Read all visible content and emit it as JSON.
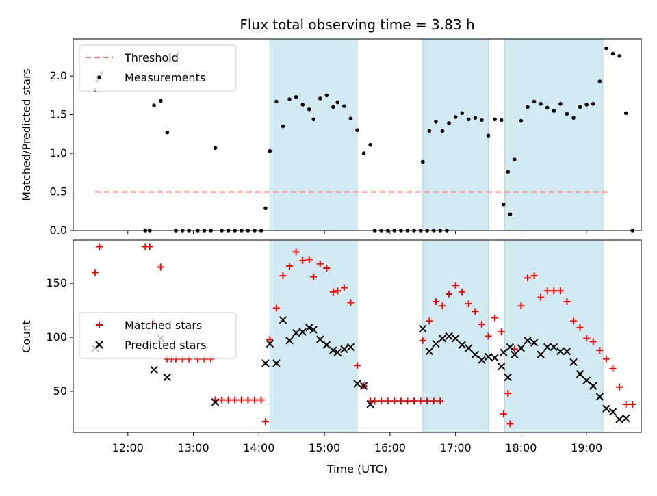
{
  "chart_data": [
    {
      "type": "scatter",
      "title": "Flux total observing time = 3.83 h",
      "ylabel": "Matched/Predicted stars",
      "xlabel": "",
      "xlim": [
        "11:10",
        "19:50"
      ],
      "ylim": [
        0,
        2.48
      ],
      "yticks": [
        0.0,
        0.5,
        1.0,
        1.5,
        2.0
      ],
      "ytick_labels": [
        "0.0",
        "0.5",
        "1.0",
        "1.5",
        "2.0"
      ],
      "grid": false,
      "legend_position": "upper-left",
      "shaded_color": "#add8e6",
      "shaded_intervals": [
        [
          "14:10",
          "15:30"
        ],
        [
          "16:30",
          "17:30"
        ],
        [
          "17:45",
          "19:15"
        ]
      ],
      "threshold": {
        "name": "Threshold",
        "y": 0.5,
        "x_start": "11:30",
        "x_end": "19:20",
        "color": "#ff7070"
      },
      "series": [
        {
          "name": "Measurements",
          "color": "#000000",
          "points": [
            [
              "11:30",
              1.82
            ],
            [
              "11:32",
              1.94
            ],
            [
              "11:36",
              2.04
            ],
            [
              "12:16",
              0.0
            ],
            [
              "12:20",
              0.0
            ],
            [
              "12:24",
              1.62
            ],
            [
              "12:30",
              1.68
            ],
            [
              "12:36",
              1.27
            ],
            [
              "12:44",
              0.0
            ],
            [
              "12:50",
              0.0
            ],
            [
              "12:56",
              0.0
            ],
            [
              "13:04",
              0.0
            ],
            [
              "13:10",
              0.0
            ],
            [
              "13:16",
              0.0
            ],
            [
              "13:20",
              1.07
            ],
            [
              "13:26",
              0.0
            ],
            [
              "13:32",
              0.0
            ],
            [
              "13:38",
              0.0
            ],
            [
              "13:44",
              0.0
            ],
            [
              "13:50",
              0.0
            ],
            [
              "13:56",
              0.0
            ],
            [
              "14:02",
              0.0
            ],
            [
              "14:06",
              0.29
            ],
            [
              "14:10",
              1.03
            ],
            [
              "14:16",
              1.67
            ],
            [
              "14:22",
              1.35
            ],
            [
              "14:28",
              1.7
            ],
            [
              "14:34",
              1.73
            ],
            [
              "14:40",
              1.63
            ],
            [
              "14:46",
              1.57
            ],
            [
              "14:50",
              1.44
            ],
            [
              "14:56",
              1.71
            ],
            [
              "15:02",
              1.75
            ],
            [
              "15:08",
              1.6
            ],
            [
              "15:12",
              1.66
            ],
            [
              "15:18",
              1.61
            ],
            [
              "15:24",
              1.45
            ],
            [
              "15:30",
              1.3
            ],
            [
              "15:36",
              1.0
            ],
            [
              "15:42",
              1.11
            ],
            [
              "15:46",
              0.0
            ],
            [
              "15:52",
              0.0
            ],
            [
              "15:58",
              0.0
            ],
            [
              "16:04",
              0.0
            ],
            [
              "16:10",
              0.0
            ],
            [
              "16:16",
              0.0
            ],
            [
              "16:22",
              0.0
            ],
            [
              "16:28",
              0.0
            ],
            [
              "16:34",
              0.0
            ],
            [
              "16:40",
              0.0
            ],
            [
              "16:46",
              0.0
            ],
            [
              "16:52",
              0.0
            ],
            [
              "16:30",
              0.89
            ],
            [
              "16:36",
              1.29
            ],
            [
              "16:42",
              1.41
            ],
            [
              "16:48",
              1.29
            ],
            [
              "16:54",
              1.39
            ],
            [
              "17:00",
              1.47
            ],
            [
              "17:06",
              1.52
            ],
            [
              "17:12",
              1.44
            ],
            [
              "17:18",
              1.46
            ],
            [
              "17:24",
              1.43
            ],
            [
              "17:30",
              1.23
            ],
            [
              "17:36",
              1.44
            ],
            [
              "17:42",
              1.43
            ],
            [
              "17:44",
              0.34
            ],
            [
              "17:50",
              0.21
            ],
            [
              "17:48",
              0.76
            ],
            [
              "17:54",
              0.92
            ],
            [
              "18:00",
              1.42
            ],
            [
              "18:06",
              1.6
            ],
            [
              "18:12",
              1.67
            ],
            [
              "18:18",
              1.64
            ],
            [
              "18:24",
              1.59
            ],
            [
              "18:30",
              1.55
            ],
            [
              "18:36",
              1.64
            ],
            [
              "18:42",
              1.51
            ],
            [
              "18:48",
              1.46
            ],
            [
              "18:54",
              1.6
            ],
            [
              "19:00",
              1.63
            ],
            [
              "19:06",
              1.64
            ],
            [
              "19:12",
              1.93
            ],
            [
              "19:18",
              2.36
            ],
            [
              "19:24",
              2.29
            ],
            [
              "19:30",
              2.26
            ],
            [
              "19:36",
              1.52
            ],
            [
              "19:42",
              0.0
            ]
          ]
        }
      ]
    },
    {
      "type": "scatter",
      "title": "",
      "ylabel": "Count",
      "xlabel": "Time (UTC)",
      "xlim": [
        "11:10",
        "19:50"
      ],
      "ylim": [
        12,
        190
      ],
      "yticks": [
        50,
        100,
        150
      ],
      "ytick_labels": [
        "50",
        "100",
        "150"
      ],
      "xticks": [
        "12:00",
        "13:00",
        "14:00",
        "15:00",
        "16:00",
        "17:00",
        "18:00",
        "19:00"
      ],
      "grid": false,
      "legend_position": "center-left",
      "shaded_color": "#add8e6",
      "shaded_intervals": [
        [
          "14:10",
          "15:30"
        ],
        [
          "16:30",
          "17:30"
        ],
        [
          "17:45",
          "19:15"
        ]
      ],
      "series": [
        {
          "name": "Matched stars",
          "marker": "plus",
          "color": "#ff0000",
          "points": [
            [
              "11:30",
              160
            ],
            [
              "11:34",
              184
            ],
            [
              "12:16",
              184
            ],
            [
              "12:20",
              184
            ],
            [
              "12:24",
              113
            ],
            [
              "12:30",
              165
            ],
            [
              "12:36",
              80
            ],
            [
              "12:40",
              80
            ],
            [
              "12:44",
              80
            ],
            [
              "12:50",
              80
            ],
            [
              "12:56",
              80
            ],
            [
              "13:04",
              80
            ],
            [
              "13:10",
              80
            ],
            [
              "13:16",
              80
            ],
            [
              "13:20",
              42
            ],
            [
              "13:26",
              42
            ],
            [
              "13:32",
              42
            ],
            [
              "13:38",
              42
            ],
            [
              "13:44",
              42
            ],
            [
              "13:50",
              42
            ],
            [
              "13:56",
              42
            ],
            [
              "14:02",
              42
            ],
            [
              "14:06",
              22
            ],
            [
              "14:10",
              98
            ],
            [
              "14:16",
              127
            ],
            [
              "14:22",
              157
            ],
            [
              "14:28",
              166
            ],
            [
              "14:34",
              179
            ],
            [
              "14:40",
              171
            ],
            [
              "14:46",
              172
            ],
            [
              "14:50",
              156
            ],
            [
              "14:56",
              168
            ],
            [
              "15:02",
              164
            ],
            [
              "15:08",
              142
            ],
            [
              "15:12",
              143
            ],
            [
              "15:18",
              146
            ],
            [
              "15:24",
              132
            ],
            [
              "15:30",
              74
            ],
            [
              "15:36",
              55
            ],
            [
              "15:42",
              41
            ],
            [
              "15:46",
              41
            ],
            [
              "15:52",
              41
            ],
            [
              "15:58",
              41
            ],
            [
              "16:04",
              41
            ],
            [
              "16:10",
              41
            ],
            [
              "16:16",
              41
            ],
            [
              "16:22",
              41
            ],
            [
              "16:28",
              41
            ],
            [
              "16:34",
              41
            ],
            [
              "16:40",
              41
            ],
            [
              "16:46",
              41
            ],
            [
              "16:30",
              97
            ],
            [
              "16:36",
              115
            ],
            [
              "16:42",
              133
            ],
            [
              "16:48",
              129
            ],
            [
              "16:54",
              140
            ],
            [
              "17:00",
              148
            ],
            [
              "17:06",
              142
            ],
            [
              "17:12",
              131
            ],
            [
              "17:18",
              124
            ],
            [
              "17:24",
              112
            ],
            [
              "17:30",
              101
            ],
            [
              "17:36",
              118
            ],
            [
              "17:42",
              105
            ],
            [
              "17:44",
              29
            ],
            [
              "17:50",
              20
            ],
            [
              "17:48",
              48
            ],
            [
              "17:54",
              89
            ],
            [
              "18:00",
              129
            ],
            [
              "18:06",
              155
            ],
            [
              "18:12",
              157
            ],
            [
              "18:18",
              137
            ],
            [
              "18:24",
              143
            ],
            [
              "18:30",
              143
            ],
            [
              "18:36",
              143
            ],
            [
              "18:42",
              133
            ],
            [
              "18:48",
              115
            ],
            [
              "18:54",
              109
            ],
            [
              "19:00",
              99
            ],
            [
              "19:06",
              96
            ],
            [
              "19:12",
              88
            ],
            [
              "19:18",
              80
            ],
            [
              "19:24",
              71
            ],
            [
              "19:30",
              54
            ],
            [
              "19:36",
              38
            ],
            [
              "19:42",
              38
            ]
          ]
        },
        {
          "name": "Predicted stars",
          "marker": "x",
          "color": "#000000",
          "points": [
            [
              "11:30",
              90
            ],
            [
              "12:24",
              70
            ],
            [
              "12:30",
              99
            ],
            [
              "12:36",
              63
            ],
            [
              "13:20",
              40
            ],
            [
              "14:06",
              76
            ],
            [
              "14:10",
              94
            ],
            [
              "14:16",
              76
            ],
            [
              "14:22",
              116
            ],
            [
              "14:28",
              97
            ],
            [
              "14:34",
              104
            ],
            [
              "14:40",
              105
            ],
            [
              "14:46",
              109
            ],
            [
              "14:50",
              107
            ],
            [
              "14:56",
              98
            ],
            [
              "15:02",
              93
            ],
            [
              "15:08",
              88
            ],
            [
              "15:12",
              86
            ],
            [
              "15:18",
              89
            ],
            [
              "15:24",
              91
            ],
            [
              "15:30",
              57
            ],
            [
              "15:36",
              55
            ],
            [
              "15:42",
              38
            ],
            [
              "16:30",
              108
            ],
            [
              "16:36",
              87
            ],
            [
              "16:42",
              94
            ],
            [
              "16:48",
              99
            ],
            [
              "16:54",
              101
            ],
            [
              "17:00",
              99
            ],
            [
              "17:06",
              93
            ],
            [
              "17:12",
              90
            ],
            [
              "17:18",
              84
            ],
            [
              "17:24",
              79
            ],
            [
              "17:30",
              82
            ],
            [
              "17:36",
              81
            ],
            [
              "17:42",
              73
            ],
            [
              "17:44",
              86
            ],
            [
              "17:50",
              91
            ],
            [
              "17:48",
              63
            ],
            [
              "17:54",
              84
            ],
            [
              "18:00",
              90
            ],
            [
              "18:06",
              97
            ],
            [
              "18:12",
              95
            ],
            [
              "18:18",
              84
            ],
            [
              "18:24",
              91
            ],
            [
              "18:30",
              91
            ],
            [
              "18:36",
              87
            ],
            [
              "18:42",
              87
            ],
            [
              "18:48",
              77
            ],
            [
              "18:54",
              66
            ],
            [
              "19:00",
              60
            ],
            [
              "19:06",
              55
            ],
            [
              "19:12",
              45
            ],
            [
              "19:18",
              34
            ],
            [
              "19:24",
              31
            ],
            [
              "19:30",
              24
            ],
            [
              "19:36",
              25
            ]
          ]
        }
      ]
    }
  ]
}
